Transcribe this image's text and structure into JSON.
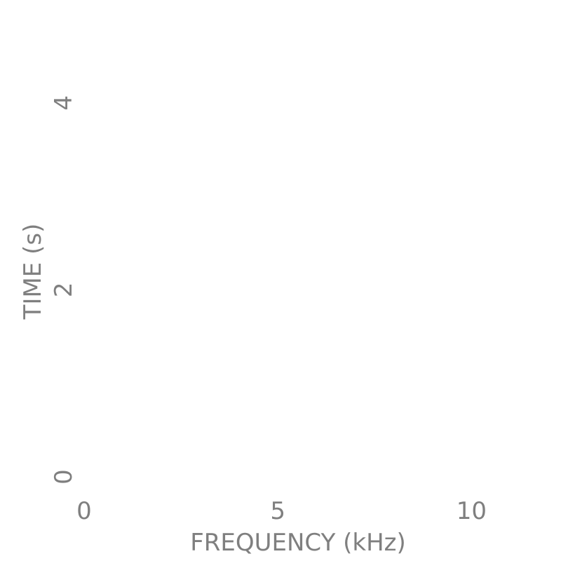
{
  "chart_data": {
    "type": "heatmap",
    "title": "",
    "xlabel": "FREQUENCY (kHz)",
    "ylabel": "TIME (s)",
    "xlim": [
      0,
      10.5
    ],
    "ylim": [
      0,
      4.8
    ],
    "x_ticks": [
      0,
      5,
      10
    ],
    "y_ticks": [
      0,
      2,
      4
    ],
    "grid": false,
    "tick_color": "#7f7f7f",
    "background": "#ffffff"
  }
}
